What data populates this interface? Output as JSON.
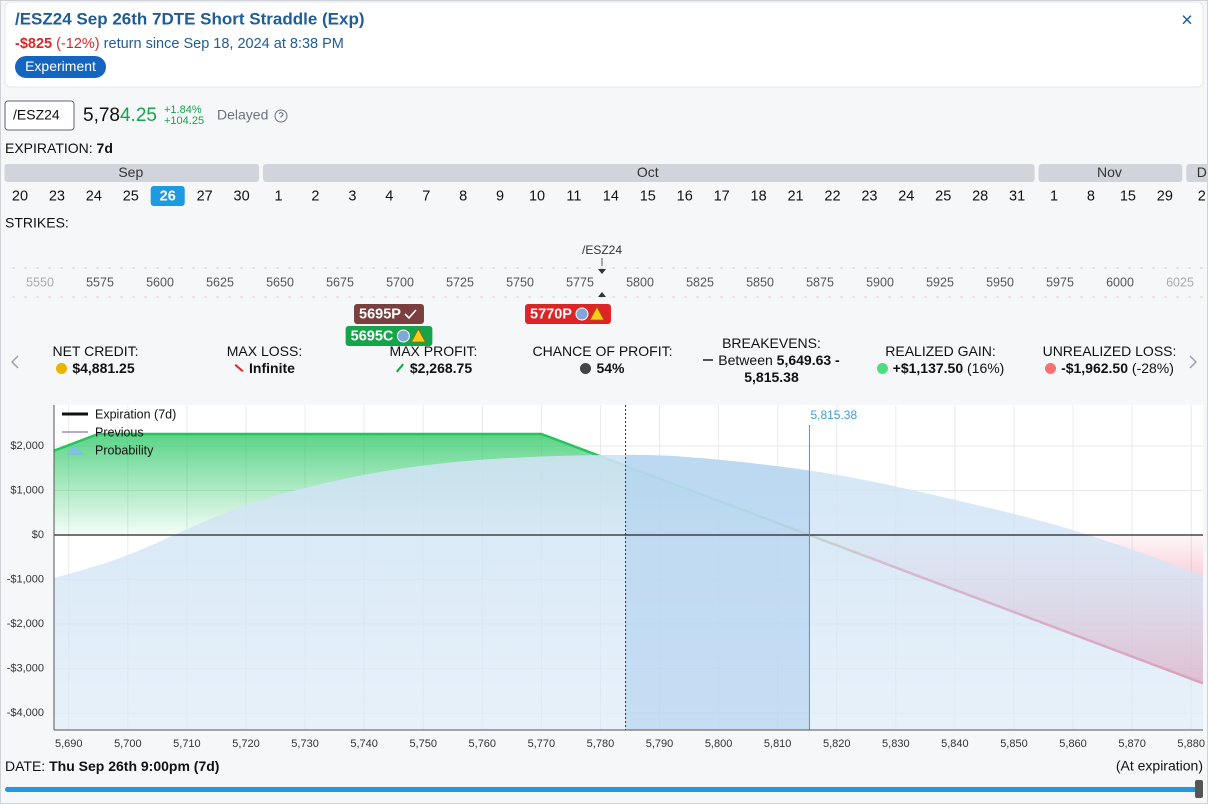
{
  "header": {
    "title": "/ESZ24 Sep 26th 7DTE Short Straddle (Exp)",
    "close": "×",
    "return_amount": "-$825",
    "return_pct": "(-12%)",
    "return_text": "return since Sep 18, 2024 at 8:38 PM",
    "badge": "Experiment"
  },
  "quote": {
    "symbol": "/ESZ24",
    "price_head": "5,78",
    "price_tail": "4.25",
    "change_pct": "+1.84%",
    "change_pts": "+104.25",
    "delayed": "Delayed"
  },
  "expiration": {
    "label": "EXPIRATION:",
    "value": "7d",
    "months": [
      {
        "name": "Sep",
        "dates": [
          20,
          23,
          24,
          25,
          26,
          27,
          30
        ]
      },
      {
        "name": "Oct",
        "dates": [
          1,
          2,
          3,
          4,
          7,
          8,
          9,
          10,
          11,
          14,
          15,
          16,
          17,
          18,
          21,
          22,
          23,
          24,
          25,
          28,
          31
        ]
      },
      {
        "name": "Nov",
        "dates": [
          1,
          8,
          15,
          29
        ]
      },
      {
        "name": "D",
        "dates": [
          2
        ]
      }
    ]
  },
  "strikes": {
    "label": "STRIKES:",
    "underlying": "/ESZ24",
    "values": [
      5550,
      5575,
      5600,
      5625,
      5650,
      5675,
      5700,
      5725,
      5750,
      5775,
      5800,
      5825,
      5850,
      5875,
      5900,
      5925,
      5950,
      5975,
      6000,
      6025
    ],
    "positions": [
      {
        "label": "5695P"
      },
      {
        "label": "5695C"
      },
      {
        "label": "5770P"
      }
    ]
  },
  "stats": [
    {
      "label": "NET CREDIT:",
      "value": "$4,881.25"
    },
    {
      "label": "MAX LOSS:",
      "value": "Infinite"
    },
    {
      "label": "MAX PROFIT:",
      "value": "$2,268.75"
    },
    {
      "label": "CHANCE OF PROFIT:",
      "value": "54%"
    },
    {
      "label": "BREAKEVENS:",
      "prefix": "Between",
      "value": "5,649.63 - 5,815.38"
    },
    {
      "label": "REALIZED GAIN:",
      "value": "+$1,137.50",
      "extra": "(16%)"
    },
    {
      "label": "UNREALIZED LOSS:",
      "value": "-$1,962.50",
      "extra": "(-28%)"
    }
  ],
  "chart_data": {
    "type": "line",
    "xlim": [
      5687.5,
      5882
    ],
    "ylim": [
      -4380,
      2920
    ],
    "xticks": [
      {
        "value": 5690,
        "label": "5,690"
      },
      {
        "value": 5700,
        "label": "5,700"
      },
      {
        "value": 5710,
        "label": "5,710"
      },
      {
        "value": 5720,
        "label": "5,720"
      },
      {
        "value": 5730,
        "label": "5,730"
      },
      {
        "value": 5740,
        "label": "5,740"
      },
      {
        "value": 5750,
        "label": "5,750"
      },
      {
        "value": 5760,
        "label": "5,760"
      },
      {
        "value": 5770,
        "label": "5,770"
      },
      {
        "value": 5780,
        "label": "5,780"
      },
      {
        "value": 5790,
        "label": "5,790"
      },
      {
        "value": 5800,
        "label": "5,800"
      },
      {
        "value": 5810,
        "label": "5,810"
      },
      {
        "value": 5820,
        "label": "5,820"
      },
      {
        "value": 5830,
        "label": "5,830"
      },
      {
        "value": 5840,
        "label": "5,840"
      },
      {
        "value": 5850,
        "label": "5,850"
      },
      {
        "value": 5860,
        "label": "5,860"
      },
      {
        "value": 5870,
        "label": "5,870"
      },
      {
        "value": 5880,
        "label": "5,880"
      }
    ],
    "yticks": [
      {
        "value": 2000,
        "label": "$2,000"
      },
      {
        "value": 1000,
        "label": "$1,000"
      },
      {
        "value": 0,
        "label": "$0"
      },
      {
        "value": -1000,
        "label": "-$1,000"
      },
      {
        "value": -2000,
        "label": "-$2,000"
      },
      {
        "value": -3000,
        "label": "-$3,000"
      },
      {
        "value": -4000,
        "label": "-$4,000"
      }
    ],
    "grid": true,
    "profit_color": "#22c55e",
    "loss_color": "#e11d48",
    "series": [
      {
        "name": "Expiration (7d)",
        "color": "#111111",
        "x": [
          5687.5,
          5695,
          5770,
          5815.38,
          5882
        ],
        "values": [
          1893.75,
          2268.75,
          2268.75,
          0,
          -3331.25
        ]
      },
      {
        "name": "Previous",
        "color": "#9b8fbf",
        "x": [],
        "values": []
      },
      {
        "name": "Probability",
        "color": "#7cc4d8",
        "x": [
          5687.5,
          5700,
          5720,
          5740,
          5760,
          5784,
          5800,
          5820,
          5840,
          5860,
          5882
        ],
        "values": [
          -970,
          -450,
          670,
          1350,
          1690,
          1800,
          1690,
          1350,
          790,
          110,
          -900
        ]
      }
    ],
    "current_price": 5784.25,
    "breakeven": {
      "value": 5815.38,
      "label": "5,815.38"
    }
  },
  "footer": {
    "date_label": "DATE:",
    "date_value": "Thu Sep 26th 9:00pm (7d)",
    "status": "(At expiration)"
  }
}
